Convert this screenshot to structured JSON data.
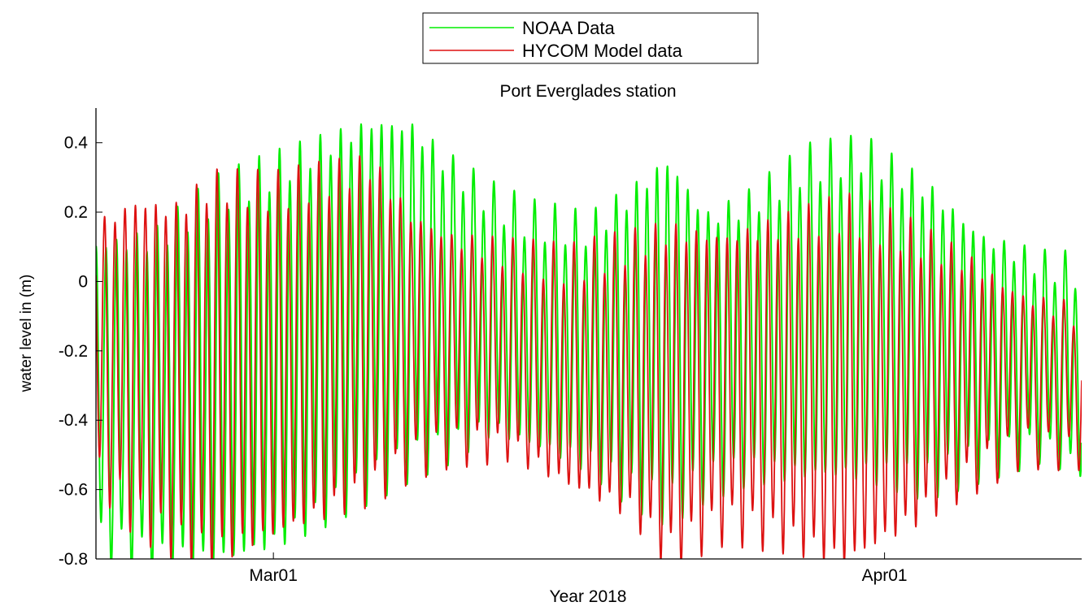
{
  "chart_data": {
    "type": "line",
    "title": "Port Everglades station",
    "xlabel": "Year 2018",
    "ylabel": "water level in (m)",
    "x_start": "2018-02-20",
    "x_end": "2018-04-11",
    "xlim": [
      "2018-02-20",
      "2018-04-11"
    ],
    "x_ticks": [
      {
        "date": "2018-03-01",
        "label": "Mar01"
      },
      {
        "date": "2018-04-01",
        "label": "Apr01"
      }
    ],
    "ylim": [
      -0.8,
      0.5
    ],
    "y_ticks": [
      {
        "value": 0.4,
        "label": "0.4"
      },
      {
        "value": 0.2,
        "label": "0.2"
      },
      {
        "value": 0,
        "label": "0"
      },
      {
        "value": -0.2,
        "label": "-0.2"
      },
      {
        "value": -0.4,
        "label": "-0.4"
      },
      {
        "value": -0.6,
        "label": "-0.6"
      },
      {
        "value": -0.8,
        "label": "-0.8"
      }
    ],
    "grid": false,
    "legend_position": "top-center",
    "series": [
      {
        "name": "NOAA Data",
        "color": "#00ee00",
        "period_days": 0.5175,
        "daily_extremes": [
          {
            "date": "2018-02-20",
            "high": 0.1,
            "low": -0.75
          },
          {
            "date": "2018-02-23",
            "high": 0.12,
            "low": -0.8
          },
          {
            "date": "2018-02-26",
            "high": 0.25,
            "low": -0.8
          },
          {
            "date": "2018-03-01",
            "high": 0.32,
            "low": -0.75
          },
          {
            "date": "2018-03-04",
            "high": 0.4,
            "low": -0.65
          },
          {
            "date": "2018-03-06",
            "high": 0.45,
            "low": -0.58
          },
          {
            "date": "2018-03-08",
            "high": 0.44,
            "low": -0.52
          },
          {
            "date": "2018-03-10",
            "high": 0.33,
            "low": -0.48
          },
          {
            "date": "2018-03-12",
            "high": 0.24,
            "low": -0.42
          },
          {
            "date": "2018-03-14",
            "high": 0.18,
            "low": -0.46
          },
          {
            "date": "2018-03-17",
            "high": 0.15,
            "low": -0.52
          },
          {
            "date": "2018-03-19",
            "high": 0.24,
            "low": -0.6
          },
          {
            "date": "2018-03-21",
            "high": 0.34,
            "low": -0.65
          },
          {
            "date": "2018-03-23",
            "high": 0.18,
            "low": -0.58
          },
          {
            "date": "2018-03-25",
            "high": 0.22,
            "low": -0.55
          },
          {
            "date": "2018-03-28",
            "high": 0.34,
            "low": -0.55
          },
          {
            "date": "2018-03-31",
            "high": 0.37,
            "low": -0.55
          },
          {
            "date": "2018-04-03",
            "high": 0.27,
            "low": -0.58
          },
          {
            "date": "2018-04-06",
            "high": 0.12,
            "low": -0.52
          },
          {
            "date": "2018-04-09",
            "high": 0.05,
            "low": -0.48
          },
          {
            "date": "2018-04-11",
            "high": 0.03,
            "low": -0.54
          }
        ]
      },
      {
        "name": "HYCOM Model data",
        "color": "#dd1111",
        "period_days": 0.5175,
        "daily_extremes": [
          {
            "date": "2018-02-20",
            "high": 0.15,
            "low": -0.55
          },
          {
            "date": "2018-02-22",
            "high": 0.22,
            "low": -0.68
          },
          {
            "date": "2018-02-24",
            "high": 0.2,
            "low": -0.75
          },
          {
            "date": "2018-02-26",
            "high": 0.28,
            "low": -0.78
          },
          {
            "date": "2018-03-01",
            "high": 0.26,
            "low": -0.72
          },
          {
            "date": "2018-03-04",
            "high": 0.3,
            "low": -0.65
          },
          {
            "date": "2018-03-06",
            "high": 0.33,
            "low": -0.6
          },
          {
            "date": "2018-03-08",
            "high": 0.18,
            "low": -0.52
          },
          {
            "date": "2018-03-10",
            "high": 0.12,
            "low": -0.48
          },
          {
            "date": "2018-03-13",
            "high": 0.08,
            "low": -0.48
          },
          {
            "date": "2018-03-16",
            "high": 0.05,
            "low": -0.58
          },
          {
            "date": "2018-03-19",
            "high": 0.1,
            "low": -0.65
          },
          {
            "date": "2018-03-21",
            "high": 0.14,
            "low": -0.78
          },
          {
            "date": "2018-03-24",
            "high": 0.12,
            "low": -0.7
          },
          {
            "date": "2018-03-27",
            "high": 0.16,
            "low": -0.74
          },
          {
            "date": "2018-03-30",
            "high": 0.2,
            "low": -0.8
          },
          {
            "date": "2018-04-02",
            "high": 0.14,
            "low": -0.7
          },
          {
            "date": "2018-04-05",
            "high": 0.06,
            "low": -0.58
          },
          {
            "date": "2018-04-08",
            "high": -0.05,
            "low": -0.48
          },
          {
            "date": "2018-04-11",
            "high": -0.1,
            "low": -0.5
          }
        ]
      }
    ]
  }
}
